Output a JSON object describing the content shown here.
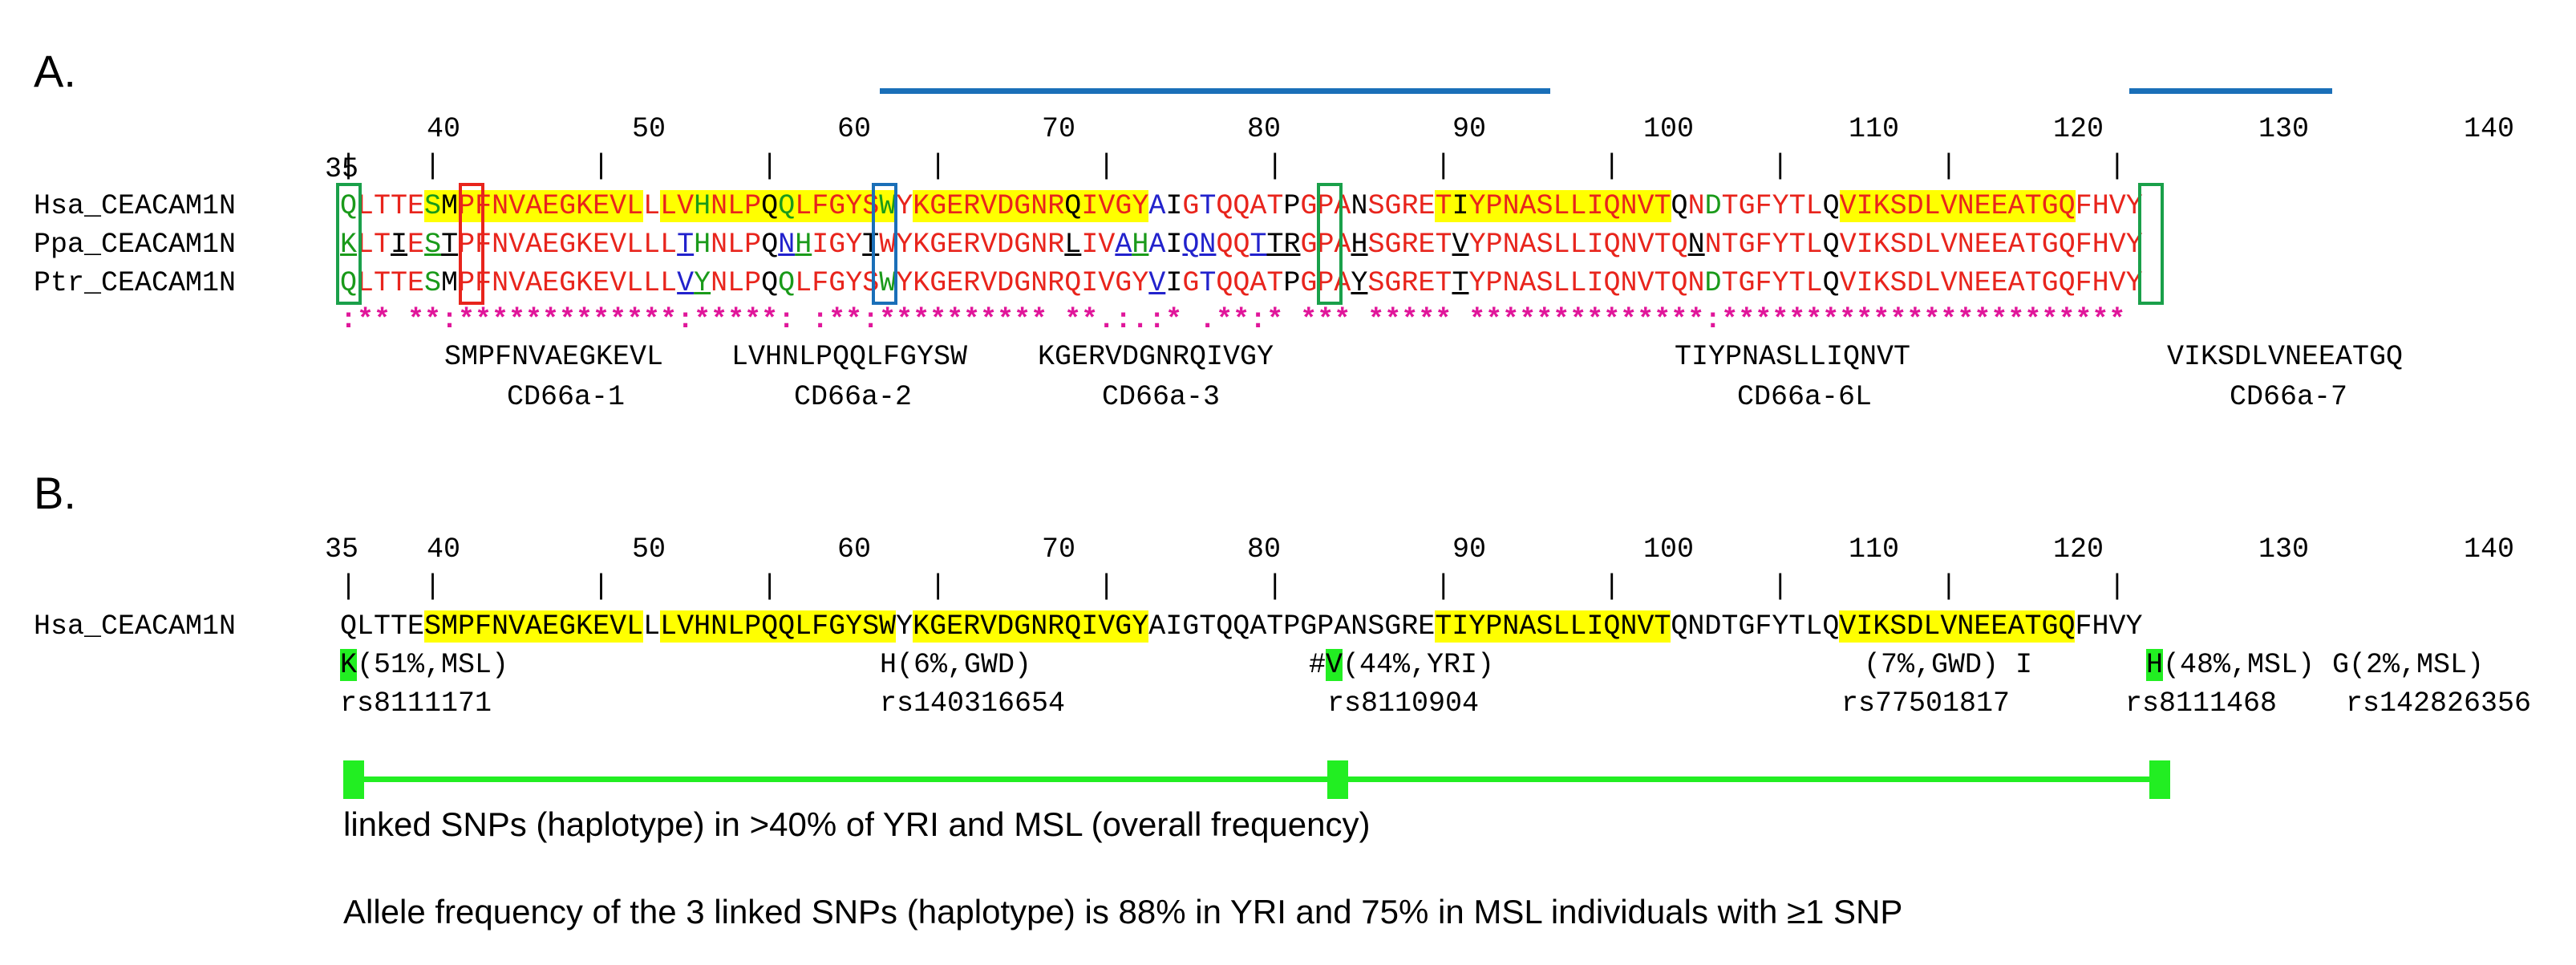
{
  "panel_a": {
    "label": "A.",
    "ruler_numbers": [
      "35",
      "40",
      "50",
      "60",
      "70",
      "80",
      "90",
      "100",
      "110",
      "120",
      "130",
      "140"
    ],
    "seq_names": [
      "Hsa_CEACAM1N",
      "Ppa_CEACAM1N",
      "Ptr_CEACAM1N"
    ],
    "consensus": ":** **:*************:*****: :**:********** **.:.:* .**:* *** ***** **************:************************",
    "epitope_sequences": [
      "SMPFNVAEGKEVL",
      "LVHNLPQQLFGYSW",
      "KGERVDGNRQIVGY",
      "TIYPNASLLIQNVT",
      "VIKSDLVNEEATGQ"
    ],
    "epitope_names": [
      "CD66a-1",
      "CD66a-2",
      "CD66a-3",
      "CD66a-6L",
      "CD66a-7"
    ],
    "colors": {
      "bar": "#1a6fb8",
      "highlight": "#ffff00",
      "box_green": "#1aa04a",
      "box_red": "#e8241c",
      "box_blue": "#1a6fb8"
    }
  },
  "panel_b": {
    "label": "B.",
    "ruler_numbers": [
      "35",
      "40",
      "50",
      "60",
      "70",
      "80",
      "90",
      "100",
      "110",
      "120",
      "130",
      "140"
    ],
    "seq_name": "Hsa_CEACAM1N",
    "snp_variants": [
      {
        "allele": "K",
        "freq": "(51%,MSL)",
        "rsid": "rs8111171"
      },
      {
        "allele": "H",
        "freq": "(6%,GWD)",
        "rsid": "rs140316654"
      },
      {
        "allele": "V",
        "freq": "(44%,YRI)",
        "prefix": "#",
        "rsid": "rs8110904"
      },
      {
        "allele": "I",
        "freq": "(7%,GWD)",
        "rsid": "rs77501817"
      },
      {
        "allele": "H",
        "freq": "(48%,MSL)",
        "rsid": "rs8111468"
      },
      {
        "allele": "G",
        "freq": "(2%,MSL)",
        "rsid": "rs142826356"
      }
    ],
    "linked_text": "linked SNPs (haplotype) in >40% of YRI and MSL (overall frequency)",
    "allele_text": "Allele frequency of the 3 linked SNPs (haplotype) is 88% in YRI and 75% in MSL individuals with ≥1 SNP",
    "colors": {
      "snp_green": "#22ee22",
      "highlight": "#ffff00"
    }
  }
}
